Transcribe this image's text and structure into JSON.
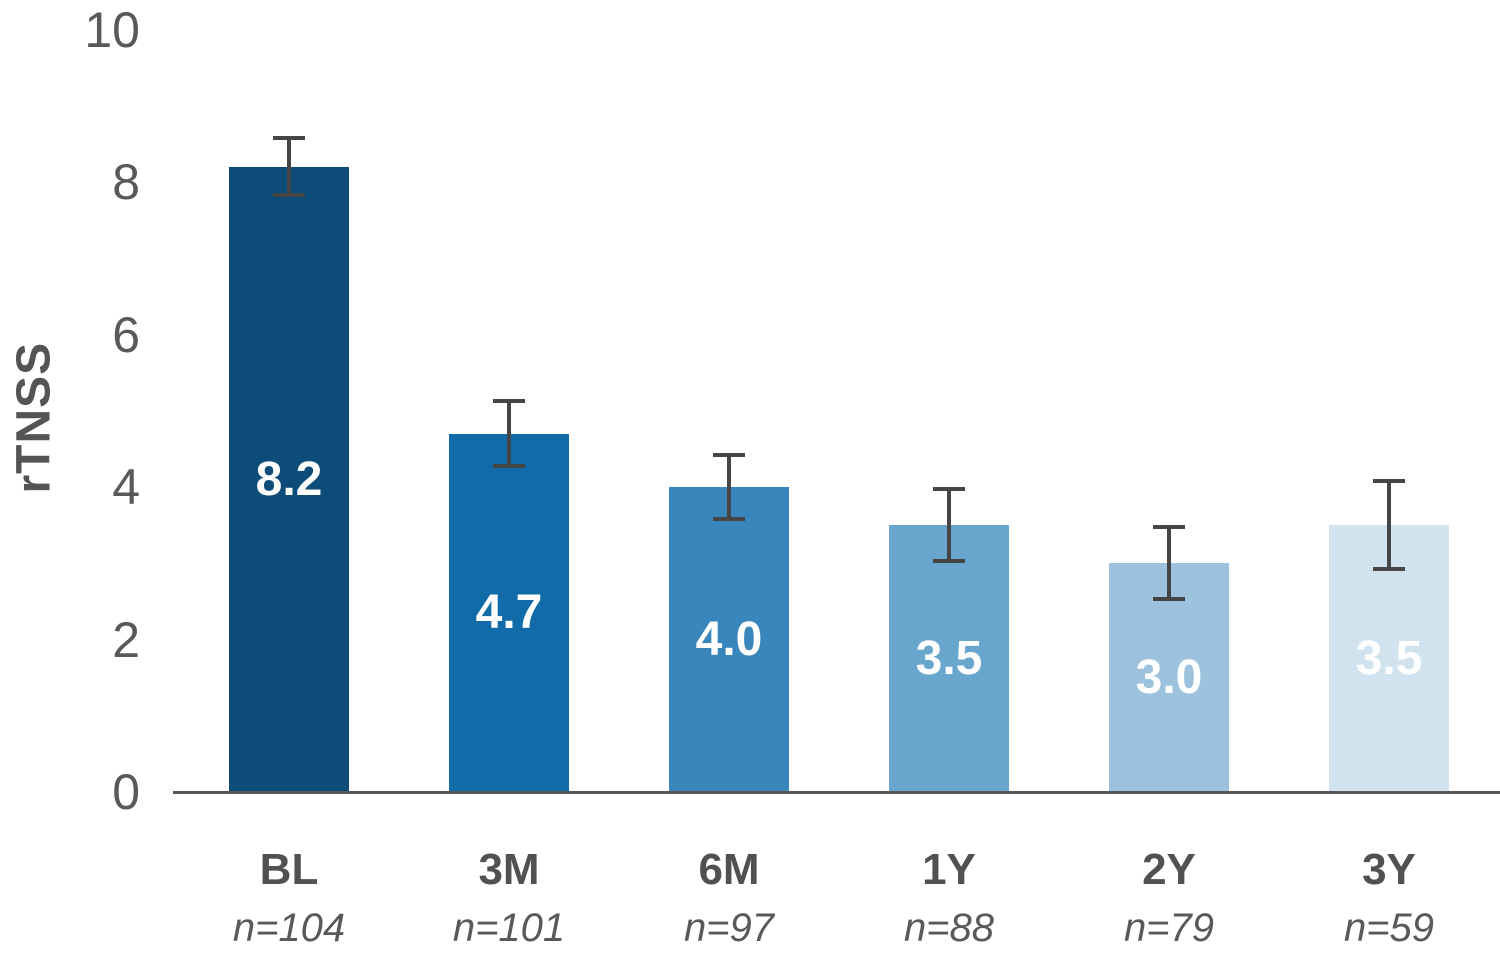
{
  "chart_data": {
    "type": "bar",
    "title": "",
    "xlabel": "",
    "ylabel": "rTNSS",
    "ylim": [
      0,
      10
    ],
    "yticks": [
      "0",
      "2",
      "4",
      "6",
      "8",
      "10"
    ],
    "grid": false,
    "legend": false,
    "categories": [
      "BL",
      "3M",
      "6M",
      "1Y",
      "2Y",
      "3Y"
    ],
    "sublabels": [
      "n=104",
      "n=101",
      "n=97",
      "n=88",
      "n=79",
      "n=59"
    ],
    "values": [
      8.2,
      4.7,
      4.0,
      3.5,
      3.0,
      3.5
    ],
    "value_labels": [
      "8.2",
      "4.7",
      "4.0",
      "3.5",
      "3.0",
      "3.5"
    ],
    "errors": [
      0.4,
      0.45,
      0.45,
      0.5,
      0.5,
      0.6
    ],
    "bar_colors": [
      "#0d4c78",
      "#106ba8",
      "#3886bb",
      "#68a6ce",
      "#9cc2de",
      "#d2e3f0"
    ],
    "error_bar_color": "#454545",
    "axis_line_color": "#58585a",
    "tick_text_color": "#59595b",
    "value_label_color": "#ffffff"
  }
}
